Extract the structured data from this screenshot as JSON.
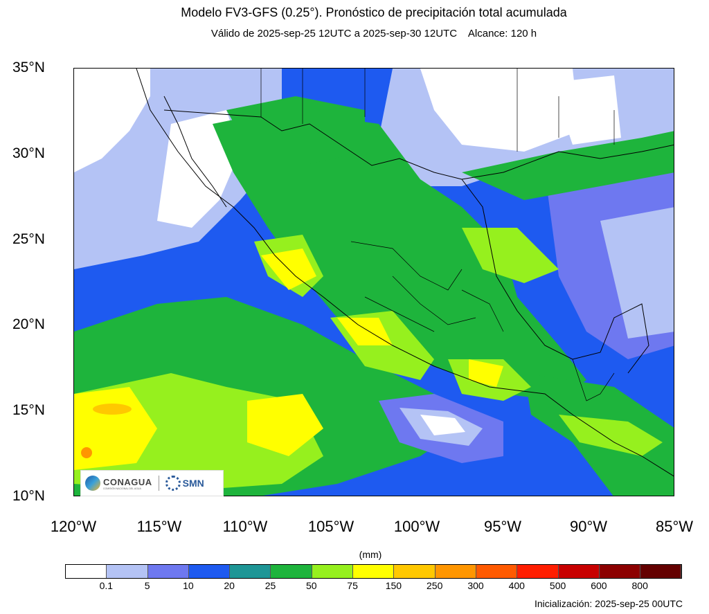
{
  "header": {
    "title": "Modelo FV3-GFS (0.25°). Pronóstico de precipitación total acumulada",
    "subtitle": "Válido de 2025-sep-25 12UTC a 2025-sep-30 12UTC    Alcance: 120 h"
  },
  "map": {
    "lat_ticks": [
      "35°N",
      "30°N",
      "25°N",
      "20°N",
      "15°N",
      "10°N"
    ],
    "lon_ticks": [
      "120°W",
      "115°W",
      "110°W",
      "105°W",
      "100°W",
      "95°W",
      "90°W",
      "85°W"
    ],
    "lat_range": [
      10,
      35
    ],
    "lon_range": [
      -120,
      -85
    ]
  },
  "legend": {
    "units": "(mm)",
    "colors": [
      "#ffffff",
      "#b4c3f5",
      "#6e78f0",
      "#1e5af0",
      "#1e9696",
      "#1eb43c",
      "#96f01e",
      "#ffff00",
      "#ffc800",
      "#ff9600",
      "#ff5a00",
      "#ff1e00",
      "#c80000",
      "#8c0000",
      "#640000"
    ],
    "labels": [
      "0.1",
      "5",
      "10",
      "20",
      "25",
      "50",
      "75",
      "150",
      "250",
      "300",
      "400",
      "500",
      "600",
      "800"
    ]
  },
  "logos": {
    "conagua": "CONAGUA",
    "conagua_sub": "COMISIÓN NACIONAL DEL AGUA",
    "smn": "SMN"
  },
  "footer": {
    "init": "Inicialización: 2025-sep-25 00UTC"
  }
}
